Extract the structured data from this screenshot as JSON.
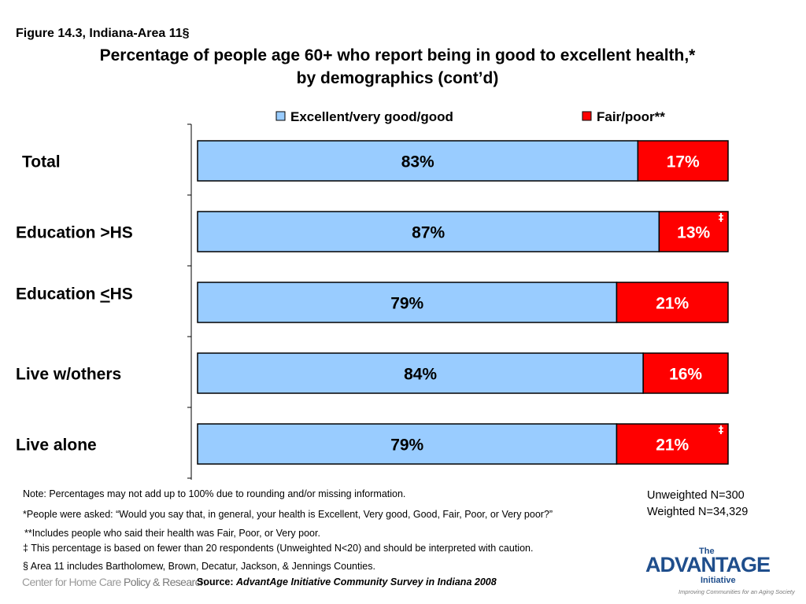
{
  "figure_label": "Figure 14.3, Indiana-Area 11§",
  "title_line1": "Percentage of people age 60+ who report being in good to excellent health,*",
  "title_line2": "by demographics (cont’d)",
  "chart_data": {
    "type": "bar",
    "orientation": "horizontal",
    "stacked": true,
    "categories": [
      "Total",
      "Education >HS",
      "Education <HS",
      "Live w/others",
      "Live alone"
    ],
    "category_label_underline_char": {
      "2": 10
    },
    "series": [
      {
        "name": "Excellent/very good/good",
        "values": [
          83,
          87,
          79,
          84,
          79
        ],
        "labels": [
          "83%",
          "87%",
          "79%",
          "84%",
          "79%"
        ],
        "color": "#99ccff"
      },
      {
        "name": "Fair/poor**",
        "values": [
          17,
          13,
          21,
          16,
          21
        ],
        "labels": [
          "17%",
          "13%",
          "21%",
          "16%",
          "21%"
        ],
        "color": "#ff0000"
      }
    ],
    "annotations": [
      {
        "category_index": 1,
        "series_index": 1,
        "text": "‡"
      },
      {
        "category_index": 4,
        "series_index": 1,
        "text": "‡"
      }
    ],
    "xlim": [
      0,
      100
    ],
    "legend_position": "top",
    "grid": false
  },
  "notes": {
    "note": "Note: Percentages may not add up to 100% due to rounding and/or missing information.",
    "question": "*People were asked: “Would you say that, in general, your health is Excellent, Very good, Good, Fair, Poor, or Very poor?”",
    "fairpoor": "**Includes people who said their health was Fair, Poor, or Very poor.",
    "caution": "‡ This percentage is based on fewer than 20 respondents (Unweighted N<20) and should be interpreted with caution.",
    "area": "§ Area 11 includes Bartholomew, Brown, Decatur, Jackson, & Jennings Counties."
  },
  "sample": {
    "unweighted": "Unweighted N=300",
    "weighted": "Weighted N=34,329"
  },
  "source_label": "Source:",
  "source_text": "AdvantAge Initiative Community Survey in Indiana 2008",
  "logo_left": {
    "part1": "Center for Home Care ",
    "part2": "Policy & Research"
  },
  "logo_right": {
    "the": "The",
    "wordmark": "ADVANTAGE",
    "initiative": "Initiative",
    "tagline": "Improving Communities for an Aging Society"
  }
}
